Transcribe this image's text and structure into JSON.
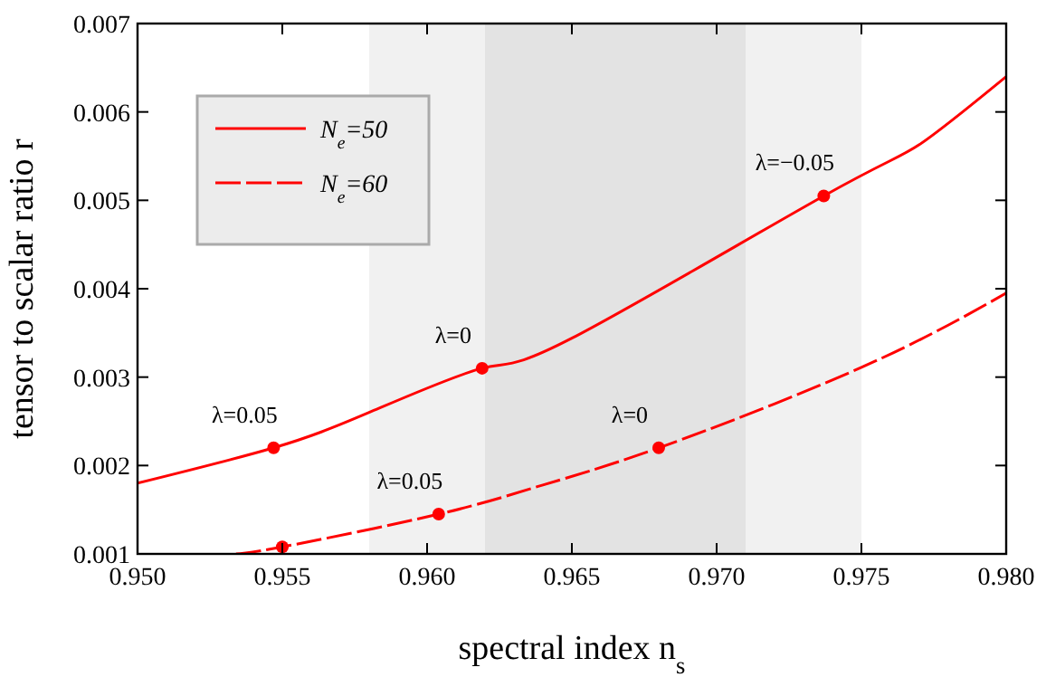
{
  "chart_data": {
    "type": "line",
    "xlabel": "spectral index n$_{s}$",
    "ylabel": "tensor to scalar ratio r",
    "xlim": [
      0.95,
      0.98
    ],
    "xticks": [
      {
        "value": 0.95,
        "label": "0.950"
      },
      {
        "value": 0.955,
        "label": "0.955"
      },
      {
        "value": 0.96,
        "label": "0.960"
      },
      {
        "value": 0.965,
        "label": "0.965"
      },
      {
        "value": 0.97,
        "label": "0.970"
      },
      {
        "value": 0.975,
        "label": "0.975"
      },
      {
        "value": 0.98,
        "label": "0.980"
      }
    ],
    "ylim": [
      0.001,
      0.007
    ],
    "yticks": [
      0.001,
      0.002,
      0.003,
      0.004,
      0.005,
      0.006,
      0.007
    ],
    "grid": false,
    "legend": "top left",
    "marker": "none",
    "bands": [
      {
        "axis": "x",
        "from": 0.958,
        "to": 0.975,
        "color": "#f1f1f1"
      },
      {
        "axis": "x",
        "from": 0.962,
        "to": 0.971,
        "color": "#e3e3e3"
      }
    ],
    "series": [
      {
        "name": "N$_{e}$=50",
        "color": "#ff0000",
        "line_style": "solid",
        "x": [
          0.95,
          0.9547,
          0.958,
          0.9619,
          0.965,
          0.9737,
          0.977,
          0.98
        ],
        "values": [
          0.0018,
          0.0022,
          0.0026,
          0.0031,
          0.00344,
          0.00505,
          0.00563,
          0.0064
        ]
      },
      {
        "name": "N$_{e}$=60",
        "color": "#ff0000",
        "line_style": "dashed",
        "x": [
          0.9534,
          0.955,
          0.9604,
          0.964,
          0.968,
          0.975,
          0.98
        ],
        "values": [
          0.001,
          0.00108,
          0.00145,
          0.00178,
          0.0022,
          0.00311,
          0.00395
        ]
      },
      {
        "type": "scatter",
        "color": "#ff0000",
        "marker": "circle",
        "x": [
          0.9547,
          0.9619,
          0.9737,
          0.955,
          0.9604,
          0.968
        ],
        "values": [
          0.0022,
          0.0031,
          0.00505,
          0.00108,
          0.00145,
          0.0022
        ]
      }
    ],
    "annotations": [
      {
        "text": "λ=0.05",
        "x": 0.9547,
        "y": 0.0022
      },
      {
        "text": "λ=0",
        "x": 0.9619,
        "y": 0.0031
      },
      {
        "text": "λ=−0.05",
        "x": 0.9737,
        "y": 0.00505
      },
      {
        "text": "λ=0.05",
        "x": 0.9604,
        "y": 0.00145
      },
      {
        "text": "λ=0",
        "x": 0.968,
        "y": 0.0022
      }
    ]
  }
}
